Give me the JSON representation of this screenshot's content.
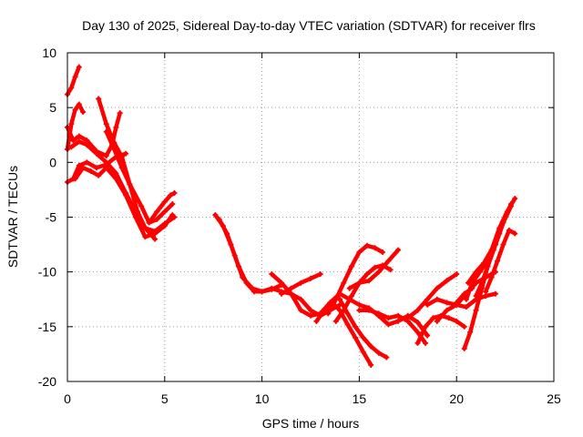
{
  "chart_data": {
    "type": "scatter",
    "title": "Day 130 of 2025, Sidereal Day-to-day VTEC variation (SDTVAR) for receiver flrs",
    "xlabel": "GPS time / hours",
    "ylabel": "SDTVAR / TECUs",
    "xlim": [
      0,
      25
    ],
    "ylim": [
      -20,
      10
    ],
    "xticks": [
      "0",
      "5",
      "10",
      "15",
      "20",
      "25"
    ],
    "yticks": [
      "-20",
      "-15",
      "-10",
      "-5",
      "0",
      "5",
      "10"
    ],
    "grid": true,
    "marker": "+",
    "color": "#ff0000",
    "series": [
      {
        "x": [
          0.0,
          0.2,
          0.4,
          0.6
        ],
        "y": [
          6.2,
          6.8,
          7.8,
          8.7
        ]
      },
      {
        "x": [
          0.0,
          0.2,
          0.4,
          0.6,
          0.8
        ],
        "y": [
          1.2,
          3.5,
          4.8,
          5.3,
          4.6
        ]
      },
      {
        "x": [
          0.0,
          0.3,
          0.6,
          1.0,
          1.5,
          2.0,
          2.3,
          2.5,
          2.7
        ],
        "y": [
          3.2,
          2.0,
          2.4,
          2.0,
          1.0,
          0.6,
          1.6,
          3.2,
          4.5
        ]
      },
      {
        "x": [
          0.0,
          0.3,
          0.6,
          1.0,
          1.5,
          2.0,
          2.5,
          3.0
        ],
        "y": [
          -1.8,
          -1.5,
          -0.3,
          0.0,
          -0.5,
          -0.2,
          0.5,
          0.8
        ]
      },
      {
        "x": [
          0.2,
          0.6,
          1.0,
          1.5,
          2.0,
          2.5,
          3.0,
          3.5,
          4.0,
          4.5
        ],
        "y": [
          1.4,
          1.9,
          1.6,
          0.8,
          0.0,
          -1.0,
          -2.8,
          -4.5,
          -6.0,
          -7.0
        ]
      },
      {
        "x": [
          0.4,
          0.8,
          1.2,
          1.6,
          2.0,
          2.5,
          3.0,
          3.5,
          4.0,
          4.5,
          5.0,
          5.4
        ],
        "y": [
          -1.5,
          -0.5,
          -0.8,
          -1.2,
          -0.5,
          -1.5,
          -3.0,
          -5.0,
          -6.8,
          -6.5,
          -5.8,
          -4.8
        ]
      },
      {
        "x": [
          1.6,
          2.0,
          2.4,
          2.8,
          3.2,
          3.6,
          4.0,
          4.5,
          5.0,
          5.5
        ],
        "y": [
          5.8,
          3.5,
          1.8,
          0.5,
          -2.0,
          -4.5,
          -6.0,
          -6.3,
          -5.6,
          -5.0
        ]
      },
      {
        "x": [
          2.0,
          2.4,
          2.8,
          3.2,
          3.8,
          4.2,
          4.6,
          5.0,
          5.4
        ],
        "y": [
          2.8,
          1.2,
          -0.5,
          -2.0,
          -4.0,
          -5.5,
          -5.2,
          -4.5,
          -3.8
        ]
      },
      {
        "x": [
          4.2,
          4.6,
          5.0,
          5.3,
          5.5
        ],
        "y": [
          -5.5,
          -4.5,
          -3.6,
          -3.0,
          -2.8
        ]
      },
      {
        "x": [
          7.6,
          8.0,
          8.4,
          8.8,
          9.2,
          9.6,
          10.0,
          10.5,
          11.0,
          11.5,
          12.0,
          12.5,
          13.0,
          13.5,
          14.0
        ],
        "y": [
          -4.8,
          -5.8,
          -7.5,
          -9.5,
          -11.0,
          -11.8,
          -11.8,
          -11.5,
          -11.8,
          -12.0,
          -12.5,
          -13.5,
          -14.0,
          -13.5,
          -13.0
        ]
      },
      {
        "x": [
          7.8,
          8.2,
          8.6,
          9.0,
          9.5,
          10.0,
          10.5,
          11.0
        ],
        "y": [
          -5.2,
          -6.5,
          -8.5,
          -10.5,
          -11.5,
          -11.8,
          -11.6,
          -11.2
        ]
      },
      {
        "x": [
          10.5,
          11.0,
          11.5,
          12.0,
          12.5,
          13.0,
          13.5,
          14.0,
          14.5,
          15.0,
          15.5,
          16.0
        ],
        "y": [
          -10.2,
          -11.0,
          -12.0,
          -13.5,
          -14.0,
          -13.8,
          -12.8,
          -12.0,
          -12.5,
          -13.0,
          -13.3,
          -14.0
        ]
      },
      {
        "x": [
          11.0,
          11.5,
          12.0,
          12.5,
          13.0
        ],
        "y": [
          -12.0,
          -11.5,
          -11.0,
          -10.6,
          -10.2
        ]
      },
      {
        "x": [
          12.8,
          13.2,
          13.6,
          14.0,
          14.4,
          14.8,
          15.2,
          15.6
        ],
        "y": [
          -14.5,
          -13.5,
          -12.8,
          -13.5,
          -14.8,
          -16.0,
          -17.3,
          -18.5
        ]
      },
      {
        "x": [
          13.4,
          13.8,
          14.2,
          14.6,
          15.0,
          15.4,
          15.8,
          16.2
        ],
        "y": [
          -13.8,
          -12.5,
          -11.0,
          -9.5,
          -8.2,
          -7.6,
          -7.8,
          -8.2
        ]
      },
      {
        "x": [
          13.8,
          14.2,
          14.6,
          15.0,
          15.4,
          15.8,
          16.2,
          16.6
        ],
        "y": [
          -14.5,
          -13.5,
          -12.2,
          -11.0,
          -10.2,
          -9.6,
          -9.4,
          -9.8
        ]
      },
      {
        "x": [
          14.0,
          14.4,
          14.8,
          15.2,
          15.6,
          16.0,
          16.4
        ],
        "y": [
          -12.5,
          -13.8,
          -15.0,
          -16.0,
          -16.8,
          -17.4,
          -17.8
        ]
      },
      {
        "x": [
          14.5,
          15.0,
          15.5,
          16.0,
          16.5,
          17.0
        ],
        "y": [
          -11.5,
          -11.0,
          -10.8,
          -10.0,
          -9.0,
          -8.0
        ]
      },
      {
        "x": [
          15.0,
          15.5,
          16.0,
          16.5,
          17.0,
          17.5,
          18.0,
          18.4
        ],
        "y": [
          -13.5,
          -13.5,
          -13.8,
          -14.2,
          -14.0,
          -14.5,
          -15.5,
          -16.5
        ]
      },
      {
        "x": [
          16.0,
          16.5,
          17.0,
          17.5,
          18.0,
          18.5
        ],
        "y": [
          -14.0,
          -14.8,
          -14.5,
          -14.0,
          -14.6,
          -15.8
        ]
      },
      {
        "x": [
          17.5,
          18.0,
          18.5,
          19.0,
          19.5,
          20.0
        ],
        "y": [
          -14.2,
          -13.5,
          -12.5,
          -11.5,
          -10.8,
          -10.2
        ]
      },
      {
        "x": [
          18.0,
          18.4,
          18.8,
          19.2,
          19.6,
          20.0,
          20.4
        ],
        "y": [
          -16.5,
          -15.0,
          -14.2,
          -14.0,
          -14.2,
          -14.5,
          -15.0
        ]
      },
      {
        "x": [
          18.5,
          19.0,
          19.5,
          20.0,
          20.5,
          21.0,
          21.5,
          22.0
        ],
        "y": [
          -13.0,
          -12.5,
          -12.8,
          -13.0,
          -13.2,
          -12.5,
          -12.2,
          -12.0
        ]
      },
      {
        "x": [
          19.0,
          19.5,
          20.0,
          20.5,
          21.0,
          21.5,
          22.0
        ],
        "y": [
          -14.5,
          -13.5,
          -13.0,
          -12.0,
          -11.0,
          -10.5,
          -10.0
        ]
      },
      {
        "x": [
          20.4,
          20.7,
          21.0,
          21.3,
          21.6,
          22.0,
          22.4,
          22.8
        ],
        "y": [
          -17.0,
          -15.5,
          -13.5,
          -11.5,
          -9.5,
          -7.5,
          -5.5,
          -3.8
        ]
      },
      {
        "x": [
          20.5,
          20.8,
          21.2,
          21.6,
          22.0,
          22.4,
          22.8
        ],
        "y": [
          -12.5,
          -11.0,
          -10.0,
          -9.0,
          -7.5,
          -5.5,
          -4.0
        ]
      },
      {
        "x": [
          20.6,
          21.0,
          21.4,
          21.8,
          22.2,
          22.6,
          23.0
        ],
        "y": [
          -11.0,
          -10.0,
          -9.2,
          -8.0,
          -6.0,
          -4.5,
          -3.3
        ]
      },
      {
        "x": [
          20.0,
          20.4,
          20.8
        ],
        "y": [
          -12.8,
          -12.0,
          -11.5
        ]
      },
      {
        "x": [
          21.5,
          21.8,
          22.1,
          22.4,
          22.7,
          23.0
        ],
        "y": [
          -11.8,
          -10.5,
          -9.0,
          -7.5,
          -6.2,
          -6.5
        ]
      },
      {
        "x": [
          21.0,
          21.3,
          21.6,
          21.9,
          22.2
        ],
        "y": [
          -12.2,
          -11.0,
          -9.5,
          -8.0,
          -6.5
        ]
      }
    ]
  }
}
